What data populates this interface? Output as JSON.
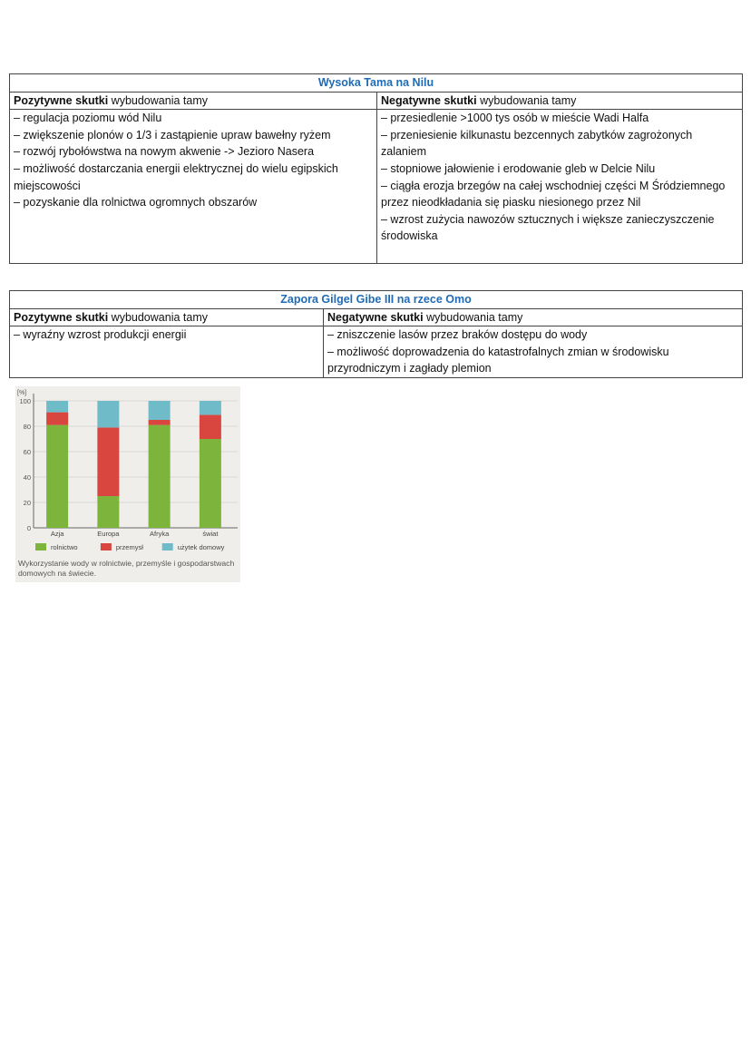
{
  "table1": {
    "title": "Wysoka Tama na Nilu",
    "positive_bold": "Pozytywne skutki",
    "positive_rest": " wybudowania tamy",
    "negative_bold": "Negatywne skutki",
    "negative_rest": " wybudowania tamy",
    "positive": [
      "– regulacja poziomu wód Nilu",
      "– zwiększenie plonów o 1/3 i zastąpienie upraw bawełny ryżem",
      "– rozwój rybołówstwa na nowym akwenie -> Jezioro Nasera",
      "– możliwość dostarczania energii elektrycznej do wielu egipskich miejscowości",
      "– pozyskanie dla rolnictwa ogromnych obszarów"
    ],
    "negative": [
      "– przesiedlenie >1000 tys osób w mieście Wadi Halfa",
      "– przeniesienie kilkunastu bezcennych zabytków zagrożonych zalaniem",
      "– stopniowe jałowienie i erodowanie gleb w Delcie Nilu",
      "– ciągła erozja brzegów na całej wschodniej części M Śródziemnego przez nieodkładania się piasku niesionego przez Nil",
      "– wzrost zużycia nawozów sztucznych i większe zanieczyszczenie środowiska"
    ]
  },
  "table2": {
    "title": "Zapora Gilgel Gibe III na rzece Omo",
    "positive_bold": "Pozytywne skutki",
    "positive_rest": " wybudowania tamy",
    "negative_bold": "Negatywne skutki",
    "negative_rest": " wybudowania tamy",
    "positive": [
      "– wyraźny wzrost produkcji energii"
    ],
    "negative": [
      "– zniszczenie lasów przez braków dostępu do wody",
      "– możliwość doprowadzenia do katastrofalnych zmian w środowisku przyrodniczym i zagłady plemion"
    ]
  },
  "chart_data": {
    "type": "bar",
    "stacked": true,
    "title": "",
    "ylabel": "[%]",
    "xlabel": "",
    "ylim": [
      0,
      100
    ],
    "yticks": [
      0,
      20,
      40,
      60,
      80,
      100
    ],
    "categories": [
      "Azja",
      "Europa",
      "Afryka",
      "świat"
    ],
    "series": [
      {
        "name": "rolnictwo",
        "color": "#7db43c",
        "values": [
          81,
          25,
          81,
          70
        ]
      },
      {
        "name": "przemysł",
        "color": "#d9463f",
        "values": [
          10,
          54,
          4,
          19
        ]
      },
      {
        "name": "użytek domowy",
        "color": "#6fbcc8",
        "values": [
          9,
          21,
          15,
          11
        ]
      }
    ],
    "legend": "bottom",
    "grid": true,
    "caption": "Wykorzystanie wody w rolnictwie, przemyśle i gospodarstwach domowych na świecie."
  }
}
